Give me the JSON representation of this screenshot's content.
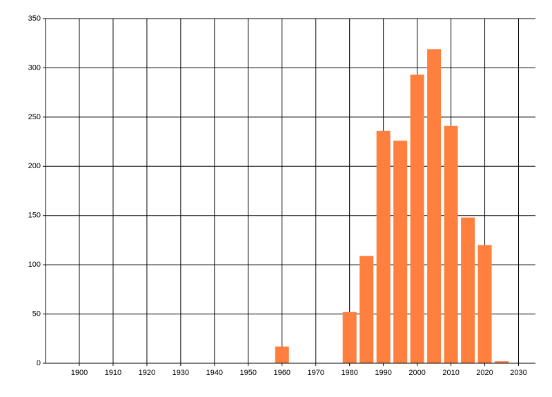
{
  "chart_data": {
    "type": "bar",
    "x": [
      1960,
      1980,
      1985,
      1990,
      1995,
      2000,
      2005,
      2010,
      2015,
      2020,
      2025
    ],
    "values": [
      17,
      52,
      109,
      236,
      226,
      293,
      319,
      241,
      148,
      120,
      2
    ],
    "color": "#ff7f3f",
    "xlim": [
      1890,
      2035
    ],
    "xticks": [
      1900,
      1910,
      1920,
      1930,
      1940,
      1950,
      1960,
      1970,
      1980,
      1990,
      2000,
      2010,
      2020,
      2030
    ],
    "ylim": [
      0,
      350
    ],
    "yticks": [
      0,
      50,
      100,
      150,
      200,
      250,
      300,
      350
    ],
    "grid": true
  }
}
